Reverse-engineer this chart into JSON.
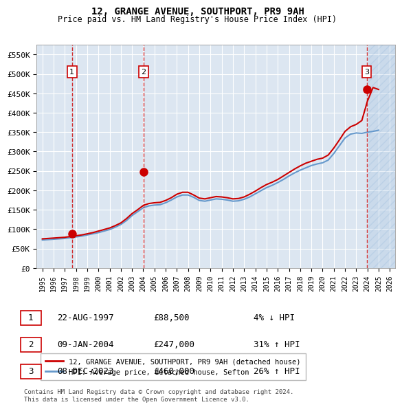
{
  "title": "12, GRANGE AVENUE, SOUTHPORT, PR9 9AH",
  "subtitle": "Price paid vs. HM Land Registry's House Price Index (HPI)",
  "ylabel": "",
  "ylim": [
    0,
    575000
  ],
  "yticks": [
    0,
    50000,
    100000,
    150000,
    200000,
    250000,
    300000,
    350000,
    400000,
    450000,
    500000,
    550000
  ],
  "ytick_labels": [
    "£0",
    "£50K",
    "£100K",
    "£150K",
    "£200K",
    "£250K",
    "£300K",
    "£350K",
    "£400K",
    "£450K",
    "£500K",
    "£550K"
  ],
  "xlim_start": 1994.5,
  "xlim_end": 2026.5,
  "background_color": "#dce6f1",
  "plot_bg_color": "#dce6f1",
  "red_line_color": "#cc0000",
  "blue_line_color": "#6699cc",
  "transaction_dates": [
    1997.64,
    2004.03,
    2023.93
  ],
  "transaction_prices": [
    88500,
    247000,
    460000
  ],
  "transaction_labels": [
    "1",
    "2",
    "3"
  ],
  "legend_label_red": "12, GRANGE AVENUE, SOUTHPORT, PR9 9AH (detached house)",
  "legend_label_blue": "HPI: Average price, detached house, Sefton",
  "table_rows": [
    [
      "1",
      "22-AUG-1997",
      "£88,500",
      "4% ↓ HPI"
    ],
    [
      "2",
      "09-JAN-2004",
      "£247,000",
      "31% ↑ HPI"
    ],
    [
      "3",
      "08-DEC-2023",
      "£460,000",
      "26% ↑ HPI"
    ]
  ],
  "footer": "Contains HM Land Registry data © Crown copyright and database right 2024.\nThis data is licensed under the Open Government Licence v3.0.",
  "hpi_years": [
    1995,
    1995.5,
    1996,
    1996.5,
    1997,
    1997.5,
    1998,
    1998.5,
    1999,
    1999.5,
    2000,
    2000.5,
    2001,
    2001.5,
    2002,
    2002.5,
    2003,
    2003.5,
    2004,
    2004.5,
    2005,
    2005.5,
    2006,
    2006.5,
    2007,
    2007.5,
    2008,
    2008.5,
    2009,
    2009.5,
    2010,
    2010.5,
    2011,
    2011.5,
    2012,
    2012.5,
    2013,
    2013.5,
    2014,
    2014.5,
    2015,
    2015.5,
    2016,
    2016.5,
    2017,
    2017.5,
    2018,
    2018.5,
    2019,
    2019.5,
    2020,
    2020.5,
    2021,
    2021.5,
    2022,
    2022.5,
    2023,
    2023.5,
    2024,
    2024.5,
    2025
  ],
  "hpi_values": [
    72000,
    73000,
    74000,
    75000,
    76000,
    78000,
    80000,
    82000,
    85000,
    88000,
    91000,
    95000,
    99000,
    105000,
    112000,
    122000,
    135000,
    145000,
    155000,
    160000,
    162000,
    163000,
    168000,
    175000,
    183000,
    188000,
    188000,
    182000,
    174000,
    172000,
    175000,
    178000,
    177000,
    175000,
    172000,
    173000,
    177000,
    183000,
    191000,
    199000,
    207000,
    213000,
    220000,
    228000,
    237000,
    245000,
    252000,
    258000,
    264000,
    268000,
    271000,
    278000,
    295000,
    315000,
    335000,
    345000,
    348000,
    347000,
    350000,
    352000,
    355000
  ],
  "red_years": [
    1995,
    1995.5,
    1996,
    1996.5,
    1997,
    1997.5,
    1998,
    1998.5,
    1999,
    1999.5,
    2000,
    2000.5,
    2001,
    2001.5,
    2002,
    2002.5,
    2003,
    2003.5,
    2004,
    2004.5,
    2005,
    2005.5,
    2006,
    2006.5,
    2007,
    2007.5,
    2008,
    2008.5,
    2009,
    2009.5,
    2010,
    2010.5,
    2011,
    2011.5,
    2012,
    2012.5,
    2013,
    2013.5,
    2014,
    2014.5,
    2015,
    2015.5,
    2016,
    2016.5,
    2017,
    2017.5,
    2018,
    2018.5,
    2019,
    2019.5,
    2020,
    2020.5,
    2021,
    2021.5,
    2022,
    2022.5,
    2023,
    2023.5,
    2024,
    2024.5,
    2025
  ],
  "red_values": [
    75000,
    76000,
    77000,
    78000,
    79000,
    81000,
    83000,
    85000,
    88000,
    91000,
    95000,
    99000,
    103000,
    109000,
    116000,
    127000,
    140000,
    150000,
    161000,
    166000,
    168000,
    169000,
    174000,
    181000,
    190000,
    195000,
    195000,
    188000,
    180000,
    178000,
    181000,
    184000,
    183000,
    181000,
    178000,
    179000,
    183000,
    190000,
    198000,
    207000,
    215000,
    221000,
    228000,
    237000,
    246000,
    255000,
    263000,
    270000,
    275000,
    280000,
    283000,
    291000,
    309000,
    330000,
    352000,
    364000,
    370000,
    380000,
    430000,
    465000,
    460000
  ],
  "future_start": 2024.0,
  "xtick_years": [
    1995,
    1996,
    1997,
    1998,
    1999,
    2000,
    2001,
    2002,
    2003,
    2004,
    2005,
    2006,
    2007,
    2008,
    2009,
    2010,
    2011,
    2012,
    2013,
    2014,
    2015,
    2016,
    2017,
    2018,
    2019,
    2020,
    2021,
    2022,
    2023,
    2024,
    2025,
    2026
  ]
}
